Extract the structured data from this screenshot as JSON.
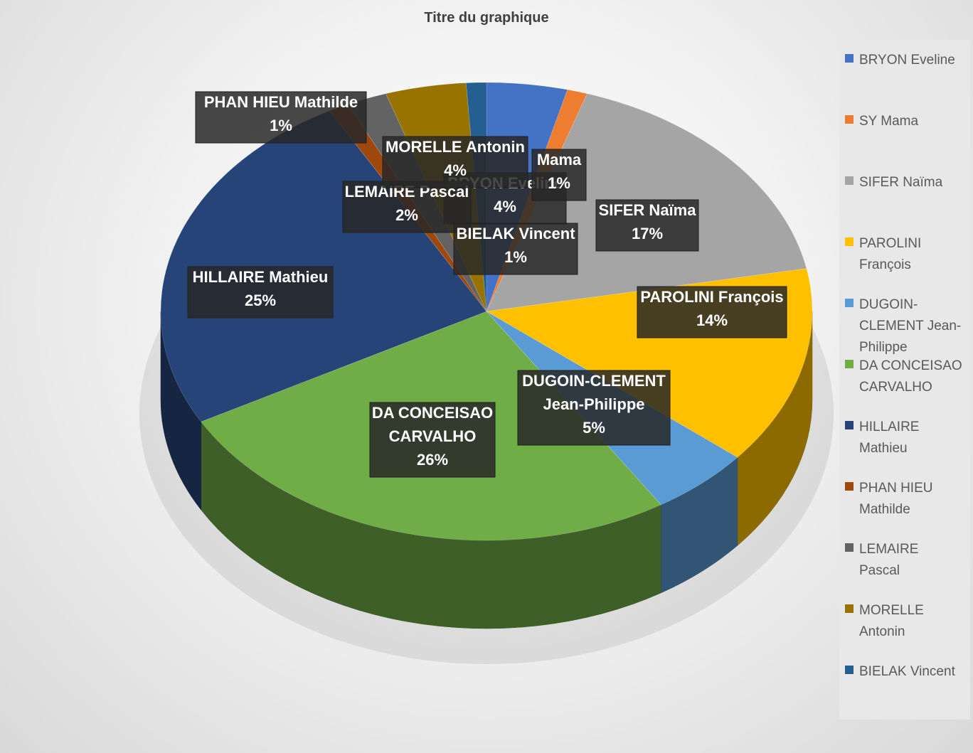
{
  "chart_data": {
    "type": "pie",
    "title": "Titre du graphique",
    "legend_position": "right",
    "slices": [
      {
        "name": "BRYON Eveline",
        "value": 4,
        "label": "4%",
        "color": "#4472C4"
      },
      {
        "name": "SY Mama",
        "value": 1,
        "label": "1%",
        "color": "#ED7D31"
      },
      {
        "name": "SIFER Naïma",
        "value": 17,
        "label": "17%",
        "color": "#A5A5A5"
      },
      {
        "name": "PAROLINI François",
        "value": 14,
        "label": "14%",
        "color": "#FFC000"
      },
      {
        "name": "DUGOIN-CLEMENT Jean-Philippe",
        "value": 5,
        "label": "5%",
        "color": "#5B9BD5"
      },
      {
        "name": "DA CONCEISAO CARVALHO",
        "value": 26,
        "label": "26%",
        "color": "#70AD47"
      },
      {
        "name": "HILLAIRE Mathieu",
        "value": 25,
        "label": "25%",
        "color": "#264478"
      },
      {
        "name": "PHAN HIEU Mathilde",
        "value": 1,
        "label": "1%",
        "color": "#9E480E"
      },
      {
        "name": "LEMAIRE Pascal",
        "value": 2,
        "label": "2%",
        "color": "#636363"
      },
      {
        "name": "MORELLE Antonin",
        "value": 4,
        "label": "4%",
        "color": "#997300"
      },
      {
        "name": "BIELAK Vincent",
        "value": 1,
        "label": "1%",
        "color": "#255E91"
      }
    ],
    "data_label_lines": [
      [
        "BRYON Eveline",
        "4%"
      ],
      [
        "Mama",
        "1%"
      ],
      [
        "SIFER Naïma",
        "17%"
      ],
      [
        "PAROLINI François",
        "14%"
      ],
      [
        "DUGOIN-CLEMENT",
        "Jean-Philippe",
        "5%"
      ],
      [
        "DA CONCEISAO",
        "CARVALHO",
        "26%"
      ],
      [
        "HILLAIRE Mathieu",
        "25%"
      ],
      [
        "PHAN HIEU Mathilde",
        "1%"
      ],
      [
        "LEMAIRE Pascal",
        "2%"
      ],
      [
        "MORELLE Antonin",
        "4%"
      ],
      [
        "BIELAK Vincent",
        "1%"
      ]
    ],
    "legend_lines": [
      [
        "BRYON Eveline"
      ],
      [
        "SY Mama"
      ],
      [
        "SIFER Naïma"
      ],
      [
        "PAROLINI",
        "François"
      ],
      [
        "DUGOIN-",
        "CLEMENT Jean-",
        "Philippe"
      ],
      [
        "DA CONCEISAO",
        "CARVALHO"
      ],
      [
        "HILLAIRE",
        "Mathieu"
      ],
      [
        "PHAN HIEU",
        "Mathilde"
      ],
      [
        "LEMAIRE",
        "Pascal"
      ],
      [
        "MORELLE",
        "Antonin"
      ],
      [
        "BIELAK Vincent"
      ]
    ]
  }
}
